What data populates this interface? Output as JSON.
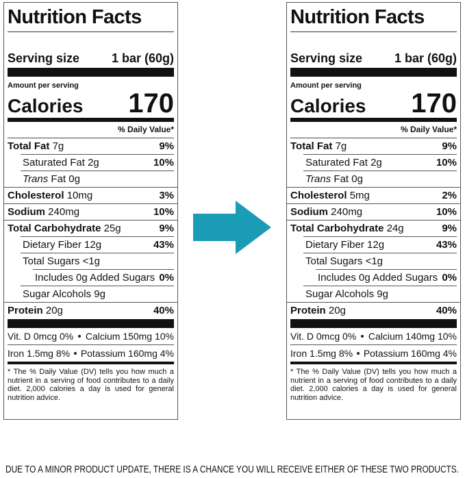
{
  "labels": [
    {
      "title": "Nutrition Facts",
      "serving_label": "Serving size",
      "serving_amount": "1 bar (60g)",
      "amount_per_serving": "Amount per serving",
      "calories_label": "Calories",
      "calories": "170",
      "dv_header": "% Daily Value*",
      "rows": [
        {
          "name": "Total Fat",
          "amount": "7g",
          "dv": "9%"
        },
        {
          "name": "Saturated Fat",
          "amount": "2g",
          "dv": "10%"
        },
        {
          "name_italic": "Trans",
          "name": "Fat",
          "amount": "0g"
        },
        {
          "name": "Cholesterol",
          "amount": "10mg",
          "dv": "3%"
        },
        {
          "name": "Sodium",
          "amount": "240mg",
          "dv": "10%"
        },
        {
          "name": "Total Carbohydrate",
          "amount": "25g",
          "dv": "9%"
        },
        {
          "name": "Dietary Fiber",
          "amount": "12g",
          "dv": "43%"
        },
        {
          "name": "Total Sugars",
          "amount": "<1g"
        },
        {
          "name": "Includes 0g Added Sugars",
          "dv": "0%"
        },
        {
          "name": "Sugar Alcohols",
          "amount": "9g"
        },
        {
          "name": "Protein",
          "amount": "20g",
          "dv": "40%"
        }
      ],
      "vitamins": [
        [
          "Vit. D 0mcg 0%",
          "Calcium 150mg 10%"
        ],
        [
          "Iron 1.5mg 8%",
          "Potassium 160mg 4%"
        ]
      ],
      "footnote": "* The % Daily Value (DV) tells you how much a nutrient in a serving of food contributes to a daily diet. 2,000 calories a day is used for general nutrition advice."
    },
    {
      "title": "Nutrition Facts",
      "serving_label": "Serving size",
      "serving_amount": "1 bar (60g)",
      "amount_per_serving": "Amount per serving",
      "calories_label": "Calories",
      "calories": "170",
      "dv_header": "% Daily Value*",
      "rows": [
        {
          "name": "Total Fat",
          "amount": "7g",
          "dv": "9%"
        },
        {
          "name": "Saturated Fat",
          "amount": "2g",
          "dv": "10%"
        },
        {
          "name_italic": "Trans",
          "name": "Fat",
          "amount": "0g"
        },
        {
          "name": "Cholesterol",
          "amount": "5mg",
          "dv": "2%"
        },
        {
          "name": "Sodium",
          "amount": "240mg",
          "dv": "10%"
        },
        {
          "name": "Total Carbohydrate",
          "amount": "24g",
          "dv": "9%"
        },
        {
          "name": "Dietary Fiber",
          "amount": "12g",
          "dv": "43%"
        },
        {
          "name": "Total Sugars",
          "amount": "<1g"
        },
        {
          "name": "Includes 0g Added Sugars",
          "dv": "0%"
        },
        {
          "name": "Sugar Alcohols",
          "amount": "9g"
        },
        {
          "name": "Protein",
          "amount": "20g",
          "dv": "40%"
        }
      ],
      "vitamins": [
        [
          "Vit. D 0mcg 0%",
          "Calcium 140mg 10%"
        ],
        [
          "Iron 1.5mg 8%",
          "Potassium 160mg 4%"
        ]
      ],
      "footnote": "* The % Daily Value (DV) tells you how much a nutrient in a serving of food contributes to a daily diet. 2,000 calories a day is used for general nutrition advice."
    }
  ],
  "caption": "DUE TO A MINOR PRODUCT UPDATE, THERE IS A CHANCE YOU WILL RECEIVE EITHER OF THESE TWO PRODUCTS."
}
